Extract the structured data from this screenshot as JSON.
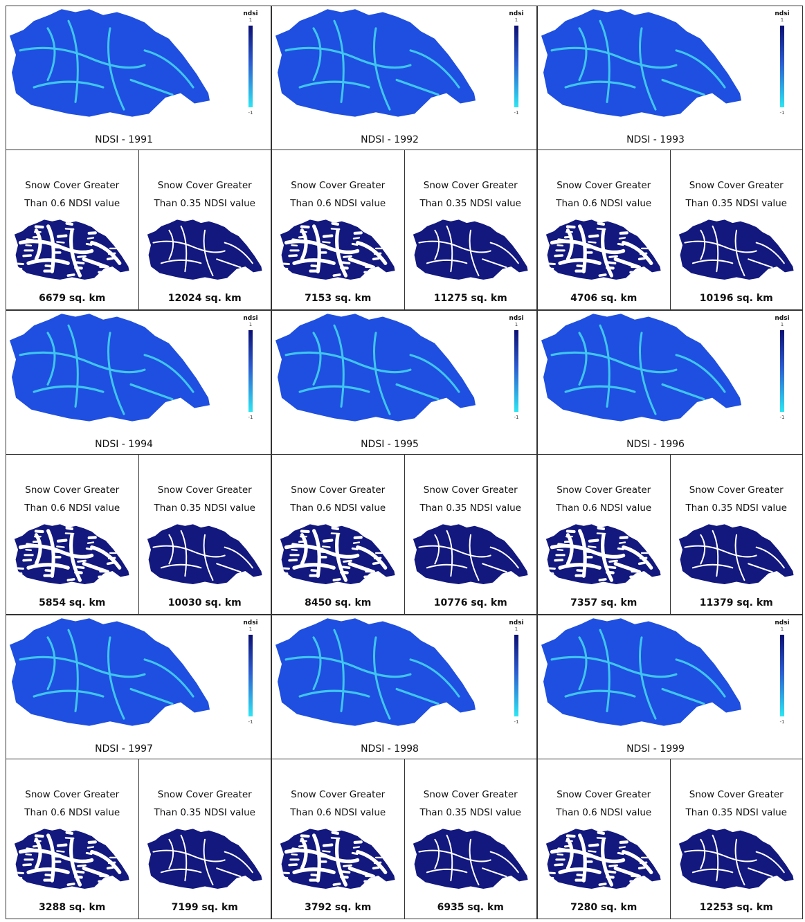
{
  "panels": [
    {
      "title": "NDSI - 1991",
      "legend": {
        "title": "ndsi",
        "max": "1",
        "min": "-1"
      },
      "maps": [
        {
          "caption_line1": "Snow Cover Greater",
          "caption_line2": "Than 0.6 NDSI value",
          "area": "6679 sq. km"
        },
        {
          "caption_line1": "Snow Cover Greater",
          "caption_line2": "Than 0.35 NDSI value",
          "area": "12024 sq. km"
        }
      ]
    },
    {
      "title": "NDSI - 1992",
      "legend": {
        "title": "ndsi",
        "max": "1",
        "min": "-1"
      },
      "maps": [
        {
          "caption_line1": "Snow Cover Greater",
          "caption_line2": "Than 0.6 NDSI value",
          "area": "7153 sq. km"
        },
        {
          "caption_line1": "Snow Cover Greater",
          "caption_line2": "Than 0.35 NDSI value",
          "area": "11275 sq. km"
        }
      ]
    },
    {
      "title": "NDSI - 1993",
      "legend": {
        "title": "ndsi",
        "max": "1",
        "min": "-1"
      },
      "maps": [
        {
          "caption_line1": "Snow Cover Greater",
          "caption_line2": "Than 0.6 NDSI value",
          "area": "4706 sq. km"
        },
        {
          "caption_line1": "Snow Cover Greater",
          "caption_line2": "Than 0.35 NDSI value",
          "area": "10196 sq. km"
        }
      ]
    },
    {
      "title": "NDSI - 1994",
      "legend": {
        "title": "ndsi",
        "max": "1",
        "min": "-1"
      },
      "maps": [
        {
          "caption_line1": "Snow Cover Greater",
          "caption_line2": "Than 0.6 NDSI value",
          "area": "5854 sq. km"
        },
        {
          "caption_line1": "Snow Cover Greater",
          "caption_line2": "Than 0.35 NDSI value",
          "area": "10030 sq. km"
        }
      ]
    },
    {
      "title": "NDSI - 1995",
      "legend": {
        "title": "ndsi",
        "max": "1",
        "min": "-1"
      },
      "maps": [
        {
          "caption_line1": "Snow Cover Greater",
          "caption_line2": "Than 0.6 NDSI value",
          "area": "8450 sq. km"
        },
        {
          "caption_line1": "Snow Cover Greater",
          "caption_line2": "Than 0.35 NDSI value",
          "area": "10776 sq. km"
        }
      ]
    },
    {
      "title": "NDSI - 1996",
      "legend": {
        "title": "ndsi",
        "max": "1",
        "min": "-1"
      },
      "maps": [
        {
          "caption_line1": "Snow Cover Greater",
          "caption_line2": "Than 0.6 NDSI value",
          "area": "7357 sq. km"
        },
        {
          "caption_line1": "Snow Cover Greater",
          "caption_line2": "Than 0.35 NDSI value",
          "area": "11379 sq. km"
        }
      ]
    },
    {
      "title": "NDSI - 1997",
      "legend": {
        "title": "ndsi",
        "max": "1",
        "min": "-1"
      },
      "maps": [
        {
          "caption_line1": "Snow Cover Greater",
          "caption_line2": "Than 0.6 NDSI value",
          "area": "3288 sq. km"
        },
        {
          "caption_line1": "Snow Cover Greater",
          "caption_line2": "Than 0.35 NDSI value",
          "area": "7199 sq. km"
        }
      ]
    },
    {
      "title": "NDSI - 1998",
      "legend": {
        "title": "ndsi",
        "max": "1",
        "min": "-1"
      },
      "maps": [
        {
          "caption_line1": "Snow Cover Greater",
          "caption_line2": "Than 0.6 NDSI value",
          "area": "3792 sq. km"
        },
        {
          "caption_line1": "Snow Cover Greater",
          "caption_line2": "Than 0.35 NDSI value",
          "area": "6935 sq. km"
        }
      ]
    },
    {
      "title": "NDSI - 1999",
      "legend": {
        "title": "ndsi",
        "max": "1",
        "min": "-1"
      },
      "maps": [
        {
          "caption_line1": "Snow Cover Greater",
          "caption_line2": "Than 0.6 NDSI value",
          "area": "7280 sq. km"
        },
        {
          "caption_line1": "Snow Cover Greater",
          "caption_line2": "Than 0.35 NDSI value",
          "area": "12253 sq. km"
        }
      ]
    }
  ]
}
